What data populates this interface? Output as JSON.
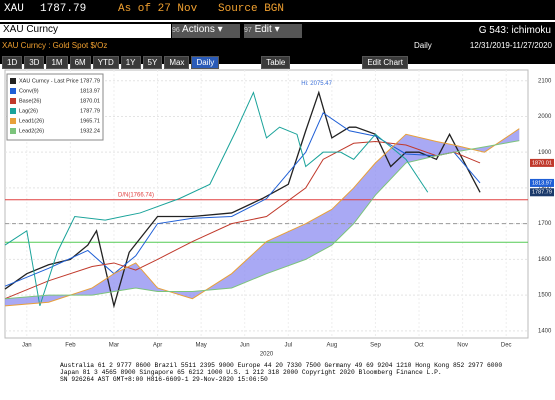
{
  "header": {
    "ticker": "XAU",
    "price": "1787.79",
    "as_of": "As of 27 Nov",
    "source": "Source BGN"
  },
  "toolbar": {
    "security": "XAU Curncy",
    "actions_num": "96",
    "actions": "Actions",
    "edit_num": "97",
    "edit": "Edit",
    "function": "G 543: ichimoku"
  },
  "subheader": {
    "description": "XAU Curncy : Gold Spot  $/Oz",
    "frequency": "Daily",
    "range": "12/31/2019-11/27/2020"
  },
  "buttons": [
    "1D",
    "3D",
    "1M",
    "6M",
    "YTD",
    "1Y",
    "5Y",
    "Max"
  ],
  "period": "Daily",
  "table": "Table",
  "edit_chart": "Edit Chart",
  "chart_data": {
    "type": "line",
    "xlim": [
      0,
      12
    ],
    "xticks": [
      {
        "value": 0.5,
        "label": "Jan"
      },
      {
        "value": 1.5,
        "label": "Feb"
      },
      {
        "value": 2.5,
        "label": "Mar"
      },
      {
        "value": 3.5,
        "label": "Apr"
      },
      {
        "value": 4.5,
        "label": "May"
      },
      {
        "value": 5.5,
        "label": "Jun"
      },
      {
        "value": 6.5,
        "label": "Jul"
      },
      {
        "value": 7.5,
        "label": "Aug"
      },
      {
        "value": 8.5,
        "label": "Sep"
      },
      {
        "value": 9.5,
        "label": "Oct"
      },
      {
        "value": 10.5,
        "label": "Nov"
      },
      {
        "value": 11.5,
        "label": "Dec"
      }
    ],
    "x_label": "2020",
    "ylim": [
      1380,
      2130
    ],
    "yticks": [
      1400,
      1500,
      1600,
      1700,
      1800,
      1900,
      2000,
      2100
    ],
    "grid": true,
    "series": [
      {
        "name": "XAU Curncy - Last Price",
        "last": "1787.79",
        "color": "#222222",
        "tag_color": "#1b3a6b",
        "x": [
          0,
          0.5,
          1,
          1.5,
          1.9,
          2.1,
          2.5,
          2.85,
          3.5,
          4.3,
          5.2,
          5.9,
          6.5,
          6.9,
          7.2,
          7.5,
          7.9,
          8.05,
          8.5,
          8.85,
          9.2,
          9.5,
          9.9,
          10.2,
          10.5,
          10.9
        ],
        "values": [
          1517,
          1560,
          1585,
          1600,
          1640,
          1680,
          1470,
          1620,
          1720,
          1720,
          1730,
          1770,
          1810,
          1960,
          2067,
          1940,
          1970,
          1970,
          1950,
          1860,
          1900,
          1900,
          1880,
          1950,
          1880,
          1787.79
        ]
      },
      {
        "name": "Conv(9)",
        "last": "1813.97",
        "color": "#1f5fd6",
        "tag_color": "#1f5fd6",
        "x": [
          0,
          1,
          1.9,
          2.5,
          3,
          3.5,
          4.3,
          5.2,
          6,
          6.9,
          7.3,
          7.9,
          8.5,
          9.2,
          9.9,
          10.3,
          10.9
        ],
        "values": [
          1525,
          1575,
          1625,
          1560,
          1610,
          1700,
          1715,
          1720,
          1770,
          1900,
          2010,
          1960,
          1945,
          1895,
          1890,
          1900,
          1813.97
        ]
      },
      {
        "name": "Base(26)",
        "last": "1870.01",
        "color": "#c0392b",
        "tag_color": "#c0392b",
        "x": [
          0,
          1,
          2,
          2.5,
          3,
          3.5,
          4.3,
          5.2,
          6,
          6.9,
          7.3,
          8,
          8.5,
          9.2,
          9.9,
          10.3,
          10.9
        ],
        "values": [
          1490,
          1540,
          1580,
          1590,
          1570,
          1600,
          1650,
          1700,
          1720,
          1800,
          1880,
          1925,
          1930,
          1920,
          1890,
          1900,
          1870.01
        ]
      },
      {
        "name": "Lag(26)",
        "last": "1787.79",
        "color": "#1aa39a",
        "x": [
          0,
          0.5,
          0.8,
          1.2,
          1.6,
          2.3,
          3.1,
          4,
          4.7,
          5.3,
          5.7,
          6,
          6.3,
          6.7,
          6.9,
          7.3,
          7.7,
          8,
          8.5,
          9.2,
          9.7
        ],
        "values": [
          1640,
          1680,
          1470,
          1620,
          1720,
          1710,
          1730,
          1770,
          1810,
          1960,
          2067,
          1940,
          1970,
          1950,
          1860,
          1900,
          1900,
          1880,
          1950,
          1880,
          1787.79
        ]
      },
      {
        "name": "Lead1(26)",
        "last": "1965.71",
        "color": "#e8a03a",
        "cloud": "#8c8cf0",
        "x": [
          0,
          1,
          2,
          2.5,
          3,
          3.5,
          4.3,
          5.2,
          6,
          6.9,
          7.5,
          8,
          8.5,
          9.2,
          9.9,
          10.3,
          11,
          11.8
        ],
        "values": [
          1470,
          1480,
          1520,
          1560,
          1590,
          1520,
          1490,
          1560,
          1650,
          1700,
          1740,
          1800,
          1870,
          1950,
          1930,
          1920,
          1900,
          1965.71
        ]
      },
      {
        "name": "Lead2(26)",
        "last": "1932.24",
        "color": "#7cc47c",
        "x": [
          0,
          1,
          2,
          2.5,
          3,
          3.5,
          4.3,
          5.2,
          6,
          6.9,
          7.5,
          8,
          8.5,
          9.2,
          9.9,
          10.3,
          11,
          11.8
        ],
        "values": [
          1490,
          1500,
          1500,
          1510,
          1520,
          1510,
          1510,
          1520,
          1560,
          1600,
          1640,
          1700,
          1780,
          1870,
          1890,
          1900,
          1915,
          1932.24
        ]
      }
    ],
    "levels": [
      {
        "value": 1766.74,
        "color": "#e04040",
        "label": "D/N(1766.74)"
      },
      {
        "value": 1700,
        "color": "#999999",
        "style": "dashed"
      },
      {
        "value": 1648,
        "color": "#55cc55"
      }
    ],
    "high": {
      "label": "Hi: 2075.47",
      "x": 7.15,
      "value": 2075.47
    }
  },
  "footer": [
    "Australia 61 2 9777 8600 Brazil 5511 2395 9000 Europe 44 20 7330 7500 Germany 49 69 9204 1210 Hong Kong 852 2977 6000",
    "Japan 81 3 4565 8900   Singapore 65 6212 1000   U.S. 1 212 318 2000   Copyright 2020 Bloomberg Finance L.P.",
    "SN 926264 AST GMT+8:00 H816-6609-1 29-Nov-2020 15:06:50"
  ]
}
